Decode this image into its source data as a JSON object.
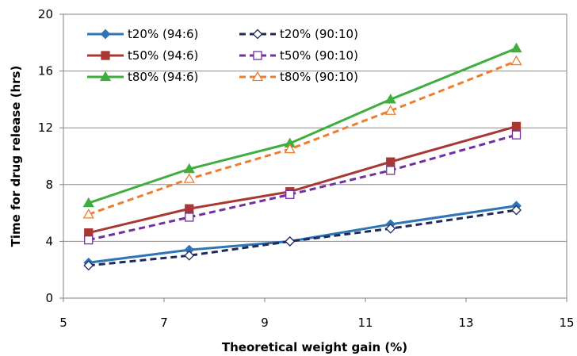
{
  "chart_data": {
    "type": "line",
    "title": "",
    "xlabel": "Theoretical weight gain (%)",
    "ylabel": "Time for drug release (hrs)",
    "xlim": [
      5,
      15
    ],
    "ylim": [
      0,
      20
    ],
    "xticks": [
      "5",
      "7",
      "9",
      "11",
      "13",
      "15"
    ],
    "yticks": [
      "0",
      "4",
      "8",
      "12",
      "16",
      "20"
    ],
    "grid": "horizontal",
    "legend_position": "top-left",
    "x": [
      5.5,
      7.5,
      9.5,
      11.5,
      14
    ],
    "series": [
      {
        "name": "t20% (94:6)",
        "values": [
          2.5,
          3.4,
          4.0,
          5.2,
          6.5
        ],
        "color": "#2E75B6",
        "dash": "solid",
        "marker": "diamond",
        "filled": true
      },
      {
        "name": "t20% (90:10)",
        "values": [
          2.3,
          3.0,
          4.0,
          4.9,
          6.2
        ],
        "color": "#1F2A5A",
        "dash": "dashed",
        "marker": "diamond",
        "filled": false
      },
      {
        "name": "t50% (94:6)",
        "values": [
          4.6,
          6.3,
          7.5,
          9.6,
          12.1
        ],
        "color": "#A93834",
        "dash": "solid",
        "marker": "square",
        "filled": true
      },
      {
        "name": "t50% (90:10)",
        "values": [
          4.1,
          5.7,
          7.3,
          9.0,
          11.5
        ],
        "color": "#7030A0",
        "dash": "dashed",
        "marker": "square",
        "filled": false
      },
      {
        "name": "t80% (94:6)",
        "values": [
          6.7,
          9.1,
          10.9,
          14.0,
          17.6
        ],
        "color": "#3EAE3E",
        "dash": "solid",
        "marker": "triangle",
        "filled": true
      },
      {
        "name": "t80% (90:10)",
        "values": [
          5.9,
          8.4,
          10.5,
          13.2,
          16.7
        ],
        "color": "#ED7D31",
        "dash": "dashed",
        "marker": "triangle",
        "filled": false
      }
    ]
  }
}
